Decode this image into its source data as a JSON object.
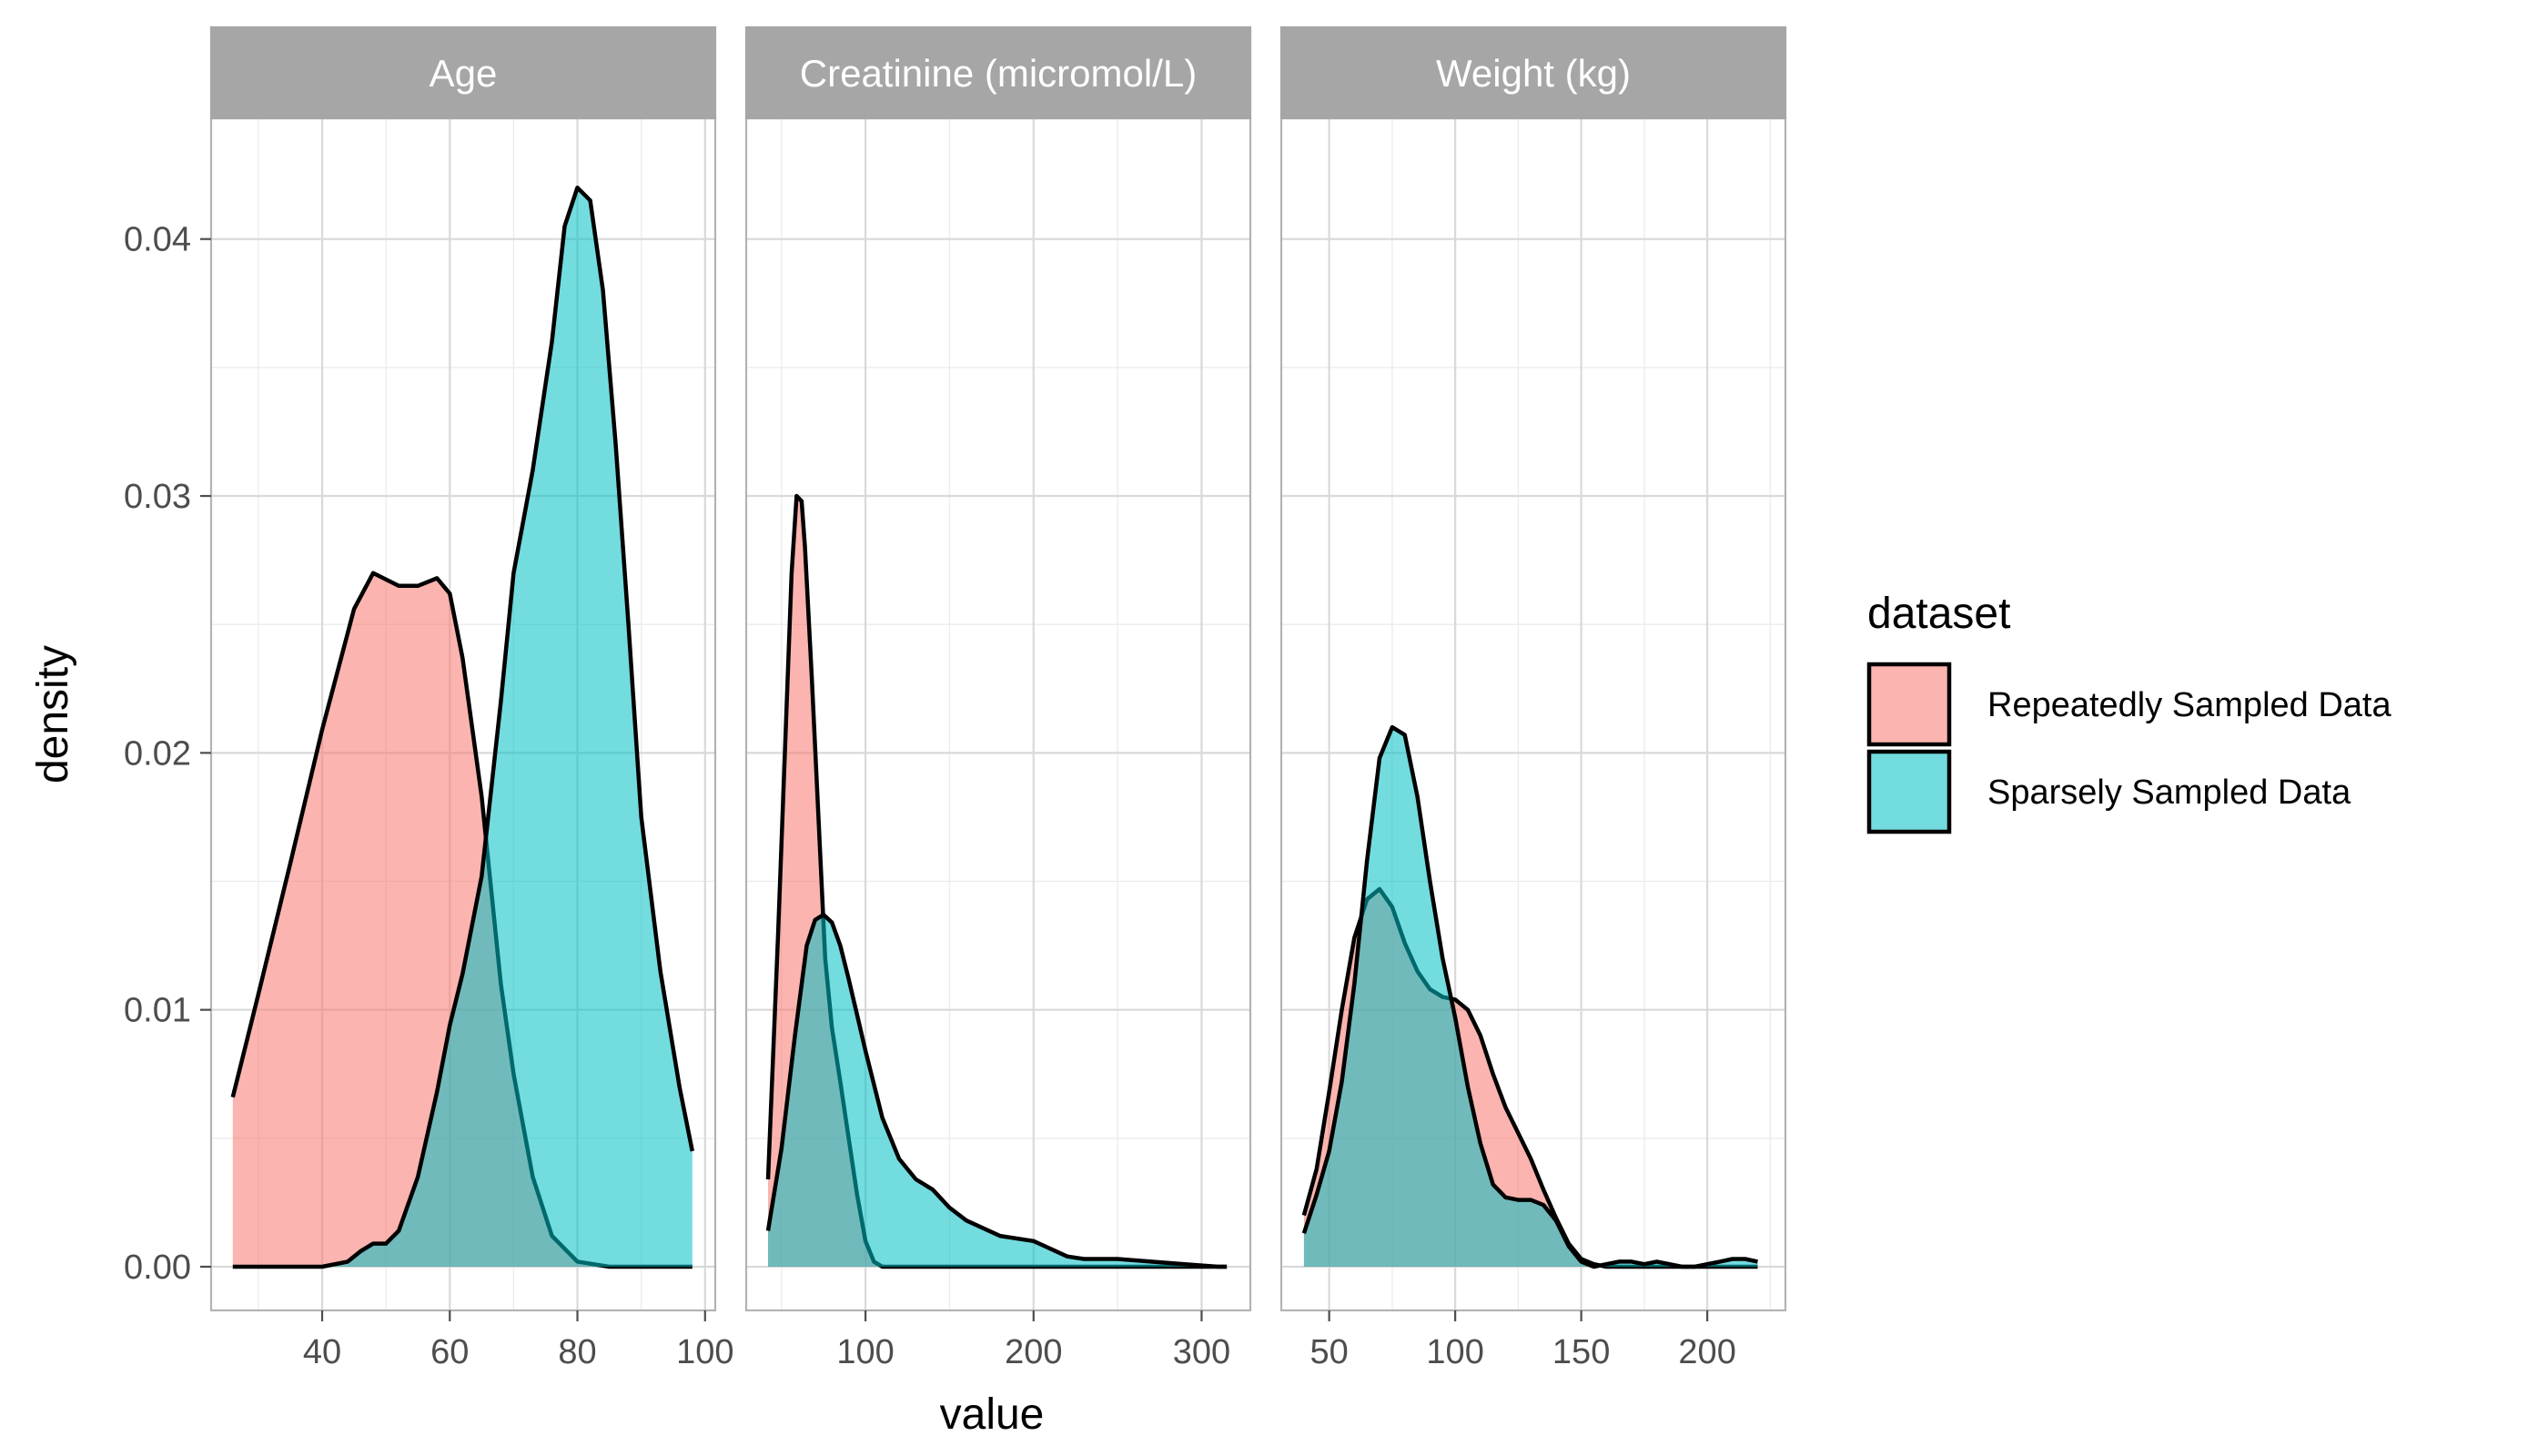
{
  "chart_data": {
    "type": "area",
    "xlabel": "value",
    "ylabel": "density",
    "ylim": [
      -0.0017,
      0.0447
    ],
    "y_ticks": [
      0.0,
      0.01,
      0.02,
      0.03,
      0.04
    ],
    "y_tick_labels": [
      "0.00",
      "0.01",
      "0.02",
      "0.03",
      "0.04"
    ],
    "grid": true,
    "legend": {
      "title": "dataset",
      "position": "right",
      "entries": [
        {
          "label": "Repeatedly Sampled Data",
          "color": "#F8766D"
        },
        {
          "label": "Sparsely Sampled Data",
          "color": "#00BFC4"
        }
      ]
    },
    "panels": [
      {
        "title": "Age",
        "xlim": [
          22.6,
          101.6
        ],
        "x_ticks": [
          40,
          60,
          80,
          100
        ],
        "x_tick_labels": [
          "40",
          "60",
          "80",
          "100"
        ],
        "series": [
          {
            "name": "Repeatedly Sampled Data",
            "x": [
              26,
              30,
              35,
              40,
              45,
              48,
              52,
              55,
              58,
              60,
              62,
              65,
              68,
              70,
              73,
              76,
              80,
              85,
              90,
              95,
              98
            ],
            "y": [
              0.0066,
              0.0106,
              0.0157,
              0.0209,
              0.0256,
              0.027,
              0.0265,
              0.0265,
              0.0268,
              0.0262,
              0.0237,
              0.0183,
              0.011,
              0.0075,
              0.0035,
              0.0012,
              0.0002,
              0.0,
              0.0,
              0.0,
              0.0
            ]
          },
          {
            "name": "Sparsely Sampled Data",
            "x": [
              26,
              35,
              40,
              44,
              46,
              48,
              50,
              52,
              55,
              58,
              60,
              62,
              65,
              68,
              70,
              73,
              76,
              78,
              80,
              82,
              84,
              86,
              88,
              90,
              93,
              96,
              98
            ],
            "y": [
              0.0,
              0.0,
              0.0,
              0.0002,
              0.0006,
              0.0009,
              0.0009,
              0.0014,
              0.0035,
              0.0068,
              0.0094,
              0.0114,
              0.0152,
              0.022,
              0.027,
              0.031,
              0.036,
              0.0405,
              0.042,
              0.0415,
              0.038,
              0.032,
              0.025,
              0.0175,
              0.0115,
              0.007,
              0.0045
            ]
          }
        ]
      },
      {
        "title": "Creatinine (micromol/L)",
        "xlim": [
          29,
          329
        ],
        "x_ticks": [
          100,
          200,
          300
        ],
        "x_tick_labels": [
          "100",
          "200",
          "300"
        ],
        "series": [
          {
            "name": "Repeatedly Sampled Data",
            "x": [
              42,
              48,
              52,
              56,
              59,
              62,
              64,
              68,
              72,
              76,
              80,
              85,
              90,
              95,
              100,
              105,
              110,
              118,
              130,
              160,
              200,
              250,
              300,
              315
            ],
            "y": [
              0.0034,
              0.013,
              0.02,
              0.027,
              0.03,
              0.0298,
              0.028,
              0.023,
              0.0175,
              0.012,
              0.0093,
              0.0072,
              0.005,
              0.0028,
              0.001,
              0.0002,
              0.0,
              0.0,
              0.0,
              0.0,
              0.0,
              0.0,
              0.0,
              0.0
            ]
          },
          {
            "name": "Sparsely Sampled Data",
            "x": [
              42,
              50,
              58,
              65,
              70,
              75,
              80,
              85,
              90,
              95,
              100,
              110,
              120,
              130,
              140,
              150,
              160,
              180,
              200,
              210,
              220,
              230,
              250,
              270,
              290,
              310,
              315
            ],
            "y": [
              0.0014,
              0.0046,
              0.009,
              0.0125,
              0.0135,
              0.0137,
              0.0134,
              0.0125,
              0.0112,
              0.0098,
              0.0084,
              0.0058,
              0.0042,
              0.0034,
              0.003,
              0.0023,
              0.0018,
              0.0012,
              0.001,
              0.0007,
              0.0004,
              0.0003,
              0.0003,
              0.0002,
              0.0001,
              0.0,
              0.0
            ]
          }
        ]
      },
      {
        "title": "Weight (kg)",
        "xlim": [
          31,
          231
        ],
        "x_ticks": [
          50,
          100,
          150,
          200
        ],
        "x_tick_labels": [
          "50",
          "100",
          "150",
          "200"
        ],
        "series": [
          {
            "name": "Repeatedly Sampled Data",
            "x": [
              40,
              45,
              50,
              55,
              60,
              65,
              70,
              75,
              80,
              85,
              90,
              95,
              100,
              105,
              110,
              115,
              120,
              125,
              130,
              135,
              140,
              145,
              150,
              155,
              160,
              165,
              170,
              175,
              180,
              185,
              190,
              195,
              200,
              205,
              210,
              215,
              220
            ],
            "y": [
              0.002,
              0.0038,
              0.0068,
              0.01,
              0.0128,
              0.0143,
              0.0147,
              0.014,
              0.0126,
              0.0115,
              0.0108,
              0.0105,
              0.0104,
              0.01,
              0.009,
              0.0075,
              0.0062,
              0.0052,
              0.0042,
              0.003,
              0.0019,
              0.0009,
              0.0003,
              0.0001,
              0.0,
              0.0,
              0.0,
              0.0,
              0.0,
              0.0,
              0.0,
              0.0,
              0.0,
              0.0,
              0.0,
              0.0,
              0.0
            ]
          },
          {
            "name": "Sparsely Sampled Data",
            "x": [
              40,
              45,
              50,
              55,
              60,
              65,
              70,
              75,
              80,
              85,
              90,
              95,
              100,
              105,
              110,
              115,
              120,
              125,
              130,
              135,
              140,
              145,
              150,
              155,
              160,
              165,
              170,
              175,
              180,
              185,
              190,
              195,
              200,
              205,
              210,
              215,
              220
            ],
            "y": [
              0.0013,
              0.0028,
              0.0045,
              0.0072,
              0.011,
              0.0158,
              0.0198,
              0.021,
              0.0207,
              0.0183,
              0.015,
              0.012,
              0.0097,
              0.007,
              0.0048,
              0.0032,
              0.0027,
              0.0026,
              0.0026,
              0.0024,
              0.0018,
              0.0008,
              0.0002,
              0.0,
              0.0001,
              0.0002,
              0.0002,
              0.0001,
              0.0002,
              0.0001,
              0.0,
              0.0,
              0.0001,
              0.0002,
              0.0003,
              0.0003,
              0.0002
            ]
          }
        ]
      }
    ]
  }
}
